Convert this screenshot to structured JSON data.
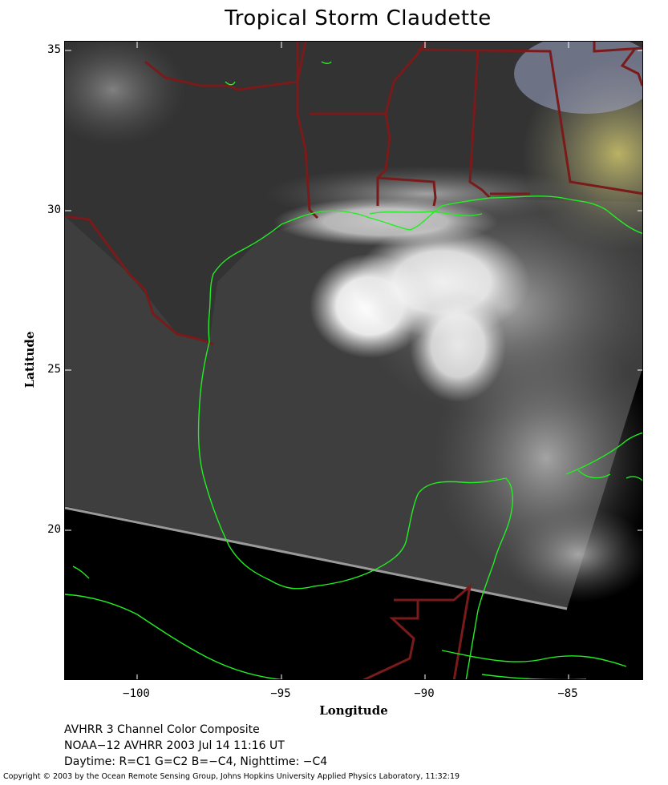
{
  "title": "Tropical Storm Claudette",
  "axes": {
    "x_label": "Longitude",
    "y_label": "Latitude",
    "x_ticks": [
      "−100",
      "−95",
      "−90",
      "−85"
    ],
    "y_ticks": [
      "35",
      "30",
      "25",
      "20"
    ]
  },
  "caption": {
    "line1": "AVHRR 3 Channel Color Composite",
    "line2": "NOAA−12 AVHRR 2003 Jul 14 11:16 UT",
    "line3": "Daytime: R=C1 G=C2 B=−C4, Nighttime: −C4"
  },
  "copyright": "Copyright © 2003 by the Ocean Remote Sensing Group, Johns Hopkins University Applied Physics Laboratory, 11:32:19",
  "colors": {
    "coastline": "#22ee22",
    "borders": "#7a1a1a",
    "background": "#000000",
    "cloud": "#ffffff",
    "ocean": "#3a3a3a"
  }
}
